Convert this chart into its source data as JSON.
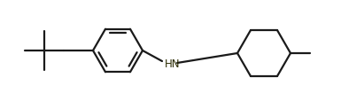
{
  "bg_color": "#ffffff",
  "line_color": "#1a1a1a",
  "hn_color": "#2a2a00",
  "figsize": [
    3.85,
    1.15
  ],
  "dpi": 100,
  "linewidth": 1.6
}
